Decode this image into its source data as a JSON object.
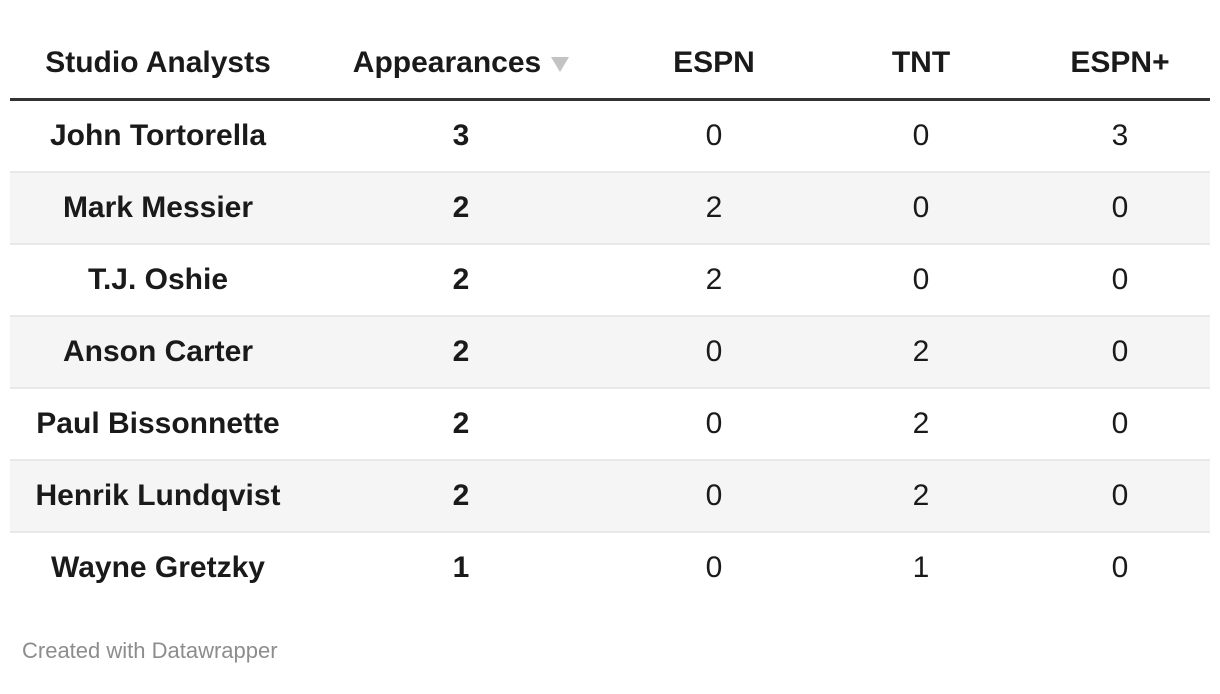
{
  "chart_data": {
    "type": "table",
    "columns": [
      "Studio Analysts",
      "Appearances",
      "ESPN",
      "TNT",
      "ESPN+"
    ],
    "sort": {
      "column": "Appearances",
      "direction": "descending"
    },
    "rows": [
      {
        "name": "John Tortorella",
        "cells": [
          "3",
          "0",
          "0",
          "3"
        ]
      },
      {
        "name": "Mark Messier",
        "cells": [
          "2",
          "2",
          "0",
          "0"
        ]
      },
      {
        "name": "T.J. Oshie",
        "cells": [
          "2",
          "2",
          "0",
          "0"
        ]
      },
      {
        "name": "Anson Carter",
        "cells": [
          "2",
          "0",
          "2",
          "0"
        ]
      },
      {
        "name": "Paul Bissonnette",
        "cells": [
          "2",
          "0",
          "2",
          "0"
        ]
      },
      {
        "name": "Henrik Lundqvist",
        "cells": [
          "2",
          "0",
          "2",
          "0"
        ]
      },
      {
        "name": "Wayne Gretzky",
        "cells": [
          "1",
          "0",
          "1",
          "0"
        ]
      }
    ]
  },
  "footer": {
    "attribution": "Created with Datawrapper"
  },
  "colors": {
    "text": "#1a1a1a",
    "header_rule": "#333333",
    "row_stripe": "#f5f5f5",
    "row_border": "#e8e8e8",
    "sort_arrow": "#c3c3c3",
    "attribution_text": "#8d8d8d",
    "background": "#ffffff"
  }
}
